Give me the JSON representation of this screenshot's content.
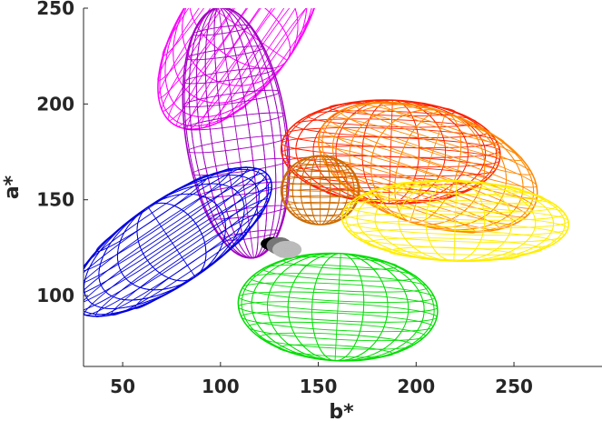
{
  "chart_data": {
    "type": "scatter",
    "subtype": "3d-wireframe-ellipsoids",
    "title": "",
    "xlabel": "b*",
    "ylabel": "a*",
    "xlim": [
      30,
      295
    ],
    "ylim": [
      63,
      250
    ],
    "xticks": [
      50,
      100,
      150,
      200,
      250
    ],
    "yticks": [
      100,
      150,
      200,
      250
    ],
    "grid": false,
    "series": [
      {
        "color": "#ff00ff",
        "center": [
          110,
          240
        ],
        "radii": [
          60,
          30
        ],
        "angle_deg": -55
      },
      {
        "color": "#a000c0",
        "center": [
          108,
          185
        ],
        "radii": [
          26,
          66
        ],
        "angle_deg": -8
      },
      {
        "color": "#ff2000",
        "center": [
          187,
          175
        ],
        "radii": [
          56,
          27
        ],
        "angle_deg": 2
      },
      {
        "color": "#ff8800",
        "center": [
          206,
          167
        ],
        "radii": [
          58,
          30
        ],
        "angle_deg": 18
      },
      {
        "color": "#cc6a00",
        "center": [
          151,
          155
        ],
        "radii": [
          20,
          18
        ],
        "angle_deg": 0
      },
      {
        "color": "#ffee00",
        "center": [
          220,
          139
        ],
        "radii": [
          58,
          21
        ],
        "angle_deg": 2
      },
      {
        "color": "#0000e0",
        "center": [
          75,
          128
        ],
        "radii": [
          60,
          22
        ],
        "angle_deg": -34
      },
      {
        "color": "#00dd00",
        "center": [
          160,
          94
        ],
        "radii": [
          51,
          28
        ],
        "angle_deg": 3
      },
      {
        "color": "#000000",
        "center": [
          127,
          127
        ],
        "radii": [
          6,
          3
        ],
        "angle_deg": 0
      },
      {
        "color": "#777777",
        "center": [
          130,
          126
        ],
        "radii": [
          6,
          4
        ],
        "angle_deg": 0
      },
      {
        "color": "#bbbbbb",
        "center": [
          134,
          124
        ],
        "radii": [
          7,
          4
        ],
        "angle_deg": 0
      }
    ]
  }
}
